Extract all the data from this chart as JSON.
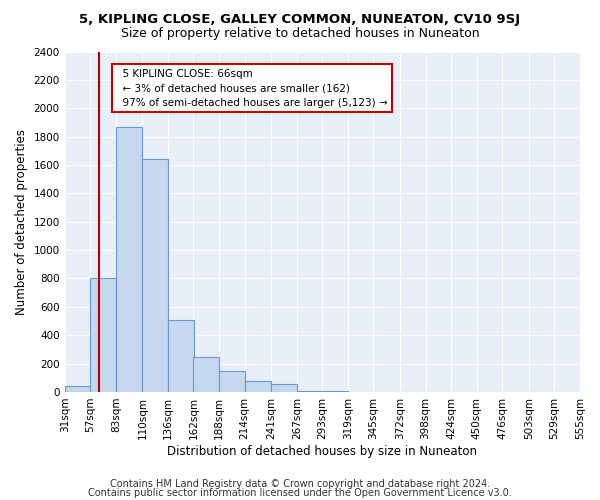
{
  "title": "5, KIPLING CLOSE, GALLEY COMMON, NUNEATON, CV10 9SJ",
  "subtitle": "Size of property relative to detached houses in Nuneaton",
  "xlabel": "Distribution of detached houses by size in Nuneaton",
  "ylabel": "Number of detached properties",
  "bar_color": "#c5d8ee",
  "bar_edge_color": "#6699cc",
  "background_color": "#e8eff8",
  "annotation_line1": "  5 KIPLING CLOSE: 66sqm",
  "annotation_line2": "  ← 3% of detached houses are smaller (162)",
  "annotation_line3": "  97% of semi-detached houses are larger (5,123) →",
  "annotation_box_color": "white",
  "annotation_box_edge_color": "#cc0000",
  "red_line_x": 66,
  "footer_line1": "Contains HM Land Registry data © Crown copyright and database right 2024.",
  "footer_line2": "Contains public sector information licensed under the Open Government Licence v3.0.",
  "bin_edges": [
    31,
    57,
    83,
    110,
    136,
    162,
    188,
    214,
    241,
    267,
    293,
    319,
    345,
    372,
    398,
    424,
    450,
    476,
    503,
    529,
    555
  ],
  "bin_heights": [
    40,
    800,
    1870,
    1640,
    510,
    245,
    150,
    80,
    55,
    10,
    5,
    2,
    1,
    0,
    0,
    0,
    0,
    0,
    0,
    0
  ],
  "ylim": [
    0,
    2400
  ],
  "yticks": [
    0,
    200,
    400,
    600,
    800,
    1000,
    1200,
    1400,
    1600,
    1800,
    2000,
    2200,
    2400
  ],
  "title_fontsize": 9.5,
  "subtitle_fontsize": 9,
  "axis_label_fontsize": 8.5,
  "tick_fontsize": 7.5,
  "footer_fontsize": 7
}
